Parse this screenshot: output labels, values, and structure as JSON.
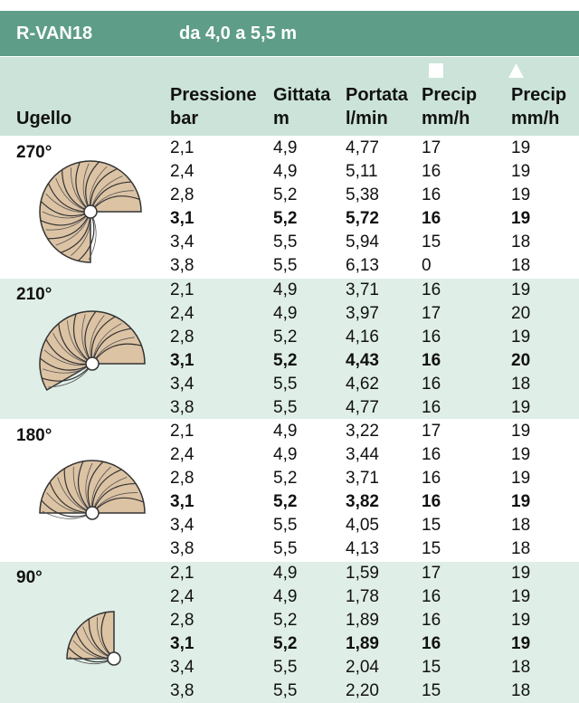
{
  "header": {
    "model": "R-VAN18",
    "range": "da 4,0 a 5,5 m"
  },
  "table": {
    "columns": [
      {
        "name": "Ugello"
      },
      {
        "name": "Pressione",
        "unit": "bar"
      },
      {
        "name": "Gittata",
        "unit": "m"
      },
      {
        "name": "Portata",
        "unit": "l/min"
      },
      {
        "name": "Precip",
        "unit": "mm/h"
      },
      {
        "name": "Precip",
        "unit": "mm/h"
      }
    ],
    "groups": [
      {
        "arc": "270°",
        "rows": [
          [
            "2,1",
            "4,9",
            "4,77",
            "17",
            "19"
          ],
          [
            "2,4",
            "4,9",
            "5,11",
            "16",
            "19"
          ],
          [
            "2,8",
            "5,2",
            "5,38",
            "16",
            "19"
          ],
          [
            "3,1",
            "5,2",
            "5,72",
            "16",
            "19"
          ],
          [
            "3,4",
            "5,5",
            "5,94",
            "15",
            "18"
          ],
          [
            "3,8",
            "5,5",
            "6,13",
            "0",
            "18"
          ]
        ]
      },
      {
        "arc": "210°",
        "rows": [
          [
            "2,1",
            "4,9",
            "3,71",
            "16",
            "19"
          ],
          [
            "2,4",
            "4,9",
            "3,97",
            "17",
            "20"
          ],
          [
            "2,8",
            "5,2",
            "4,16",
            "16",
            "19"
          ],
          [
            "3,1",
            "5,2",
            "4,43",
            "16",
            "20"
          ],
          [
            "3,4",
            "5,5",
            "4,62",
            "16",
            "18"
          ],
          [
            "3,8",
            "5,5",
            "4,77",
            "16",
            "19"
          ]
        ]
      },
      {
        "arc": "180°",
        "rows": [
          [
            "2,1",
            "4,9",
            "3,22",
            "17",
            "19"
          ],
          [
            "2,4",
            "4,9",
            "3,44",
            "16",
            "19"
          ],
          [
            "2,8",
            "5,2",
            "3,71",
            "16",
            "19"
          ],
          [
            "3,1",
            "5,2",
            "3,82",
            "16",
            "19"
          ],
          [
            "3,4",
            "5,5",
            "4,05",
            "15",
            "18"
          ],
          [
            "3,8",
            "5,5",
            "4,13",
            "15",
            "18"
          ]
        ]
      },
      {
        "arc": "90°",
        "rows": [
          [
            "2,1",
            "4,9",
            "1,59",
            "17",
            "19"
          ],
          [
            "2,4",
            "4,9",
            "1,78",
            "16",
            "19"
          ],
          [
            "2,8",
            "5,2",
            "1,89",
            "16",
            "19"
          ],
          [
            "3,1",
            "5,2",
            "1,89",
            "16",
            "19"
          ],
          [
            "3,4",
            "5,5",
            "2,04",
            "15",
            "18"
          ],
          [
            "3,8",
            "5,5",
            "2,20",
            "15",
            "18"
          ]
        ]
      }
    ]
  }
}
